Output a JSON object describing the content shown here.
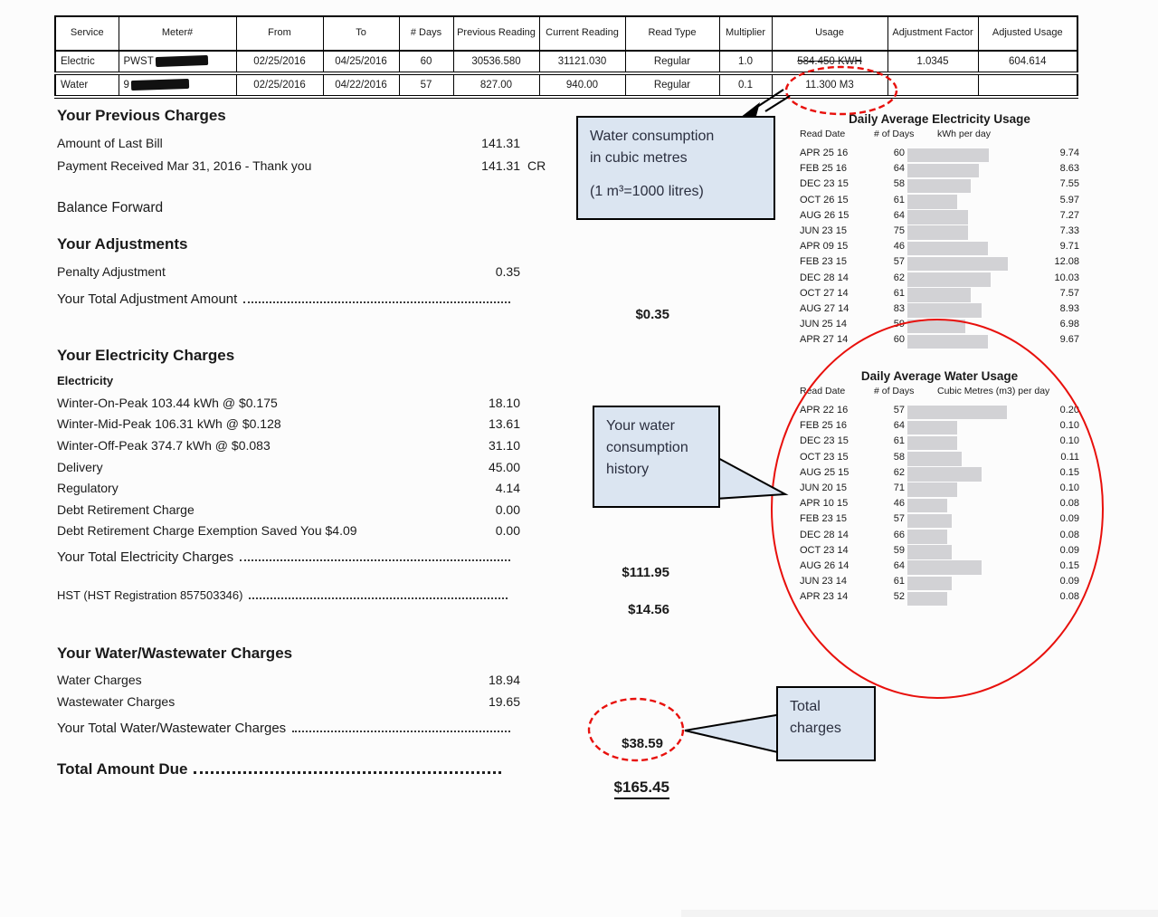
{
  "meter_table": {
    "columns": [
      "Service",
      "Meter#",
      "From",
      "To",
      "# Days",
      "Previous Reading",
      "Current Reading",
      "Read Type",
      "Multiplier",
      "Usage",
      "Adjustment Factor",
      "Adjusted Usage"
    ],
    "rows": [
      {
        "service": "Electric",
        "meter": "PWST",
        "from": "02/25/2016",
        "to": "04/25/2016",
        "days": "60",
        "previous_reading": "30536.580",
        "current_reading": "31121.030",
        "read_type": "Regular",
        "multiplier": "1.0",
        "usage": "584.450 KWH",
        "adjustment_factor": "1.0345",
        "adjusted_usage": "604.614"
      },
      {
        "service": "Water",
        "meter": "9",
        "from": "02/25/2016",
        "to": "04/22/2016",
        "days": "57",
        "previous_reading": "827.00",
        "current_reading": "940.00",
        "read_type": "Regular",
        "multiplier": "0.1",
        "usage": "11.300 M3",
        "adjustment_factor": "",
        "adjusted_usage": ""
      }
    ]
  },
  "previous_charges": {
    "title": "Your Previous Charges",
    "rows": [
      {
        "label": "Amount of Last Bill",
        "amount": "141.31",
        "suffix": ""
      },
      {
        "label": "Payment Received Mar 31, 2016 - Thank you",
        "amount": "141.31",
        "suffix": "CR"
      }
    ]
  },
  "balance_forward": "Balance Forward",
  "adjustments": {
    "title": "Your Adjustments",
    "rows": [
      {
        "label": "Penalty Adjustment",
        "amount": "0.35"
      }
    ],
    "total_label": "Your Total Adjustment Amount",
    "total_amount": "$0.35"
  },
  "electricity_charges": {
    "title": "Your Electricity Charges",
    "subtitle": "Electricity",
    "rows": [
      {
        "label": "Winter-On-Peak 103.44 kWh @ $0.175",
        "amount": "18.10"
      },
      {
        "label": "Winter-Mid-Peak 106.31 kWh @ $0.128",
        "amount": "13.61"
      },
      {
        "label": "Winter-Off-Peak 374.7 kWh @ $0.083",
        "amount": "31.10"
      },
      {
        "label": "Delivery",
        "amount": "45.00"
      },
      {
        "label": "Regulatory",
        "amount": "4.14"
      },
      {
        "label": "Debt Retirement Charge",
        "amount": "0.00"
      },
      {
        "label": "Debt Retirement Charge Exemption Saved You $4.09",
        "amount": "0.00"
      }
    ],
    "total_label": "Your Total Electricity Charges",
    "total_amount": "$111.95",
    "hst_label": "HST (HST Registration 857503346)",
    "hst_amount": "$14.56"
  },
  "water_wastewater_charges": {
    "title": "Your Water/Wastewater Charges",
    "rows": [
      {
        "label": "Water Charges",
        "amount": "18.94"
      },
      {
        "label": "Wastewater Charges",
        "amount": "19.65"
      }
    ],
    "total_label": "Your Total Water/Wastewater Charges",
    "total_amount": "$38.59"
  },
  "total_due": {
    "label": "Total Amount Due",
    "amount": "$165.45"
  },
  "callouts": {
    "water_note": {
      "line1": "Water consumption",
      "line2": "in cubic metres",
      "line3": "(1 m³=1000 litres)"
    },
    "history_note": {
      "line1": "Your water",
      "line2": "consumption",
      "line3": "history"
    },
    "total_note": {
      "line1": "Total",
      "line2": "charges"
    }
  },
  "colors": {
    "annotation_red": "#e8100c",
    "callout_fill": "#dbe5f1",
    "bar_fill": "#d2d2d5"
  },
  "chart_data": [
    {
      "type": "bar",
      "title": "Daily Average Electricity Usage",
      "columns": [
        "Read Date",
        "# of Days",
        "kWh per day"
      ],
      "categories": [
        "APR 25 16",
        "FEB 25 16",
        "DEC 23 15",
        "OCT 26 15",
        "AUG 26 15",
        "JUN 23 15",
        "APR 09 15",
        "FEB 23 15",
        "DEC 28 14",
        "OCT 27 14",
        "AUG 27 14",
        "JUN 25 14",
        "APR 27 14"
      ],
      "days": [
        60,
        64,
        58,
        61,
        64,
        75,
        46,
        57,
        62,
        61,
        83,
        59,
        60
      ],
      "values": [
        9.74,
        8.63,
        7.55,
        5.97,
        7.27,
        7.33,
        9.71,
        12.08,
        10.03,
        7.57,
        8.93,
        6.98,
        9.67
      ],
      "xlabel": "kWh per day",
      "xlim": [
        0,
        12.5
      ],
      "legend": "none",
      "grid": false
    },
    {
      "type": "bar",
      "title": "Daily Average Water Usage",
      "columns": [
        "Read Date",
        "# of Days",
        "Cubic Metres (m3) per day"
      ],
      "categories": [
        "APR 22 16",
        "FEB 25 16",
        "DEC 23 15",
        "OCT 23 15",
        "AUG 25 15",
        "JUN 20 15",
        "APR 10 15",
        "FEB 23 15",
        "DEC 28 14",
        "OCT 23 14",
        "AUG 26 14",
        "JUN 23 14",
        "APR 23 14"
      ],
      "days": [
        57,
        64,
        61,
        58,
        62,
        71,
        46,
        57,
        66,
        59,
        64,
        61,
        52
      ],
      "values": [
        0.2,
        0.1,
        0.1,
        0.11,
        0.15,
        0.1,
        0.08,
        0.09,
        0.08,
        0.09,
        0.15,
        0.09,
        0.08
      ],
      "xlabel": "Cubic Metres (m3) per day",
      "xlim": [
        0,
        0.21
      ],
      "legend": "none",
      "grid": false
    }
  ]
}
